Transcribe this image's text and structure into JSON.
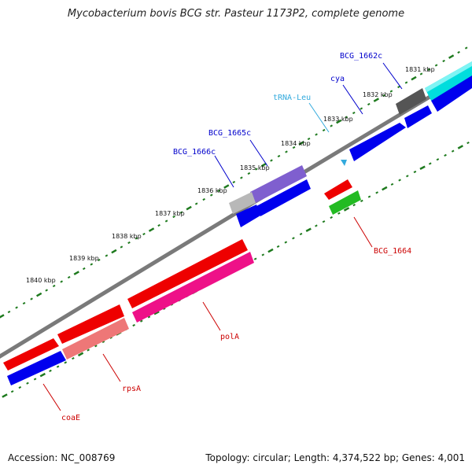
{
  "title": "Mycobacterium bovis BCG str. Pasteur 1173P2, complete genome",
  "footer": {
    "accession": "Accession: NC_008769",
    "topology": "Topology: circular; Length: 4,374,522 bp; Genes: 4,001"
  },
  "colors": {
    "backbone": "#808080",
    "tick": "#1e7a1e",
    "forward_label": "#0000cc",
    "reverse_label": "#cc0000",
    "trna_label": "#33aadd"
  },
  "kbp_labels": [
    "1831 kbp",
    "1832 kbp",
    "1833 kbp",
    "1834 kbp",
    "1835 kbp",
    "1836 kbp",
    "1837 kbp",
    "1838 kbp",
    "1839 kbp",
    "1840 kbp"
  ],
  "genes": [
    {
      "label": "BCG_1662c",
      "strand": "forward"
    },
    {
      "label": "cya",
      "strand": "forward"
    },
    {
      "label": "tRNA-Leu",
      "strand": "trna"
    },
    {
      "label": "BCG_1665c",
      "strand": "forward"
    },
    {
      "label": "BCG_1666c",
      "strand": "forward"
    },
    {
      "label": "BCG_1664",
      "strand": "reverse"
    },
    {
      "label": "polA",
      "strand": "reverse"
    },
    {
      "label": "rpsA",
      "strand": "reverse"
    },
    {
      "label": "coaE",
      "strand": "reverse"
    }
  ]
}
